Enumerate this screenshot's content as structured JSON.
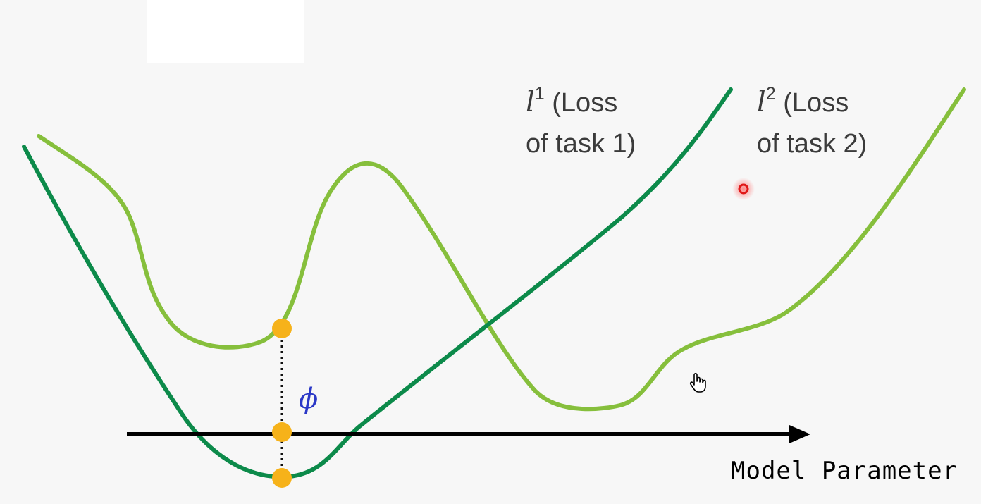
{
  "labels": {
    "l1_symbol": "l",
    "l1_sup": "1",
    "l1_text_line1": "(Loss",
    "l1_text_line2": "of task 1)",
    "l2_symbol": "l",
    "l2_sup": "2",
    "l2_text_line1": "(Loss",
    "l2_text_line2": "of task 2)",
    "phi": "ϕ",
    "axis": "Model Parameter"
  },
  "colors": {
    "loss1": "#0c8a4a",
    "loss2": "#86bf3c",
    "axis": "#000000",
    "points": "#f6b21a",
    "phi": "#2b38c7",
    "laser_pointer": "#e01818"
  },
  "icons": [
    "hand-cursor-icon",
    "laser-pointer-dot"
  ]
}
